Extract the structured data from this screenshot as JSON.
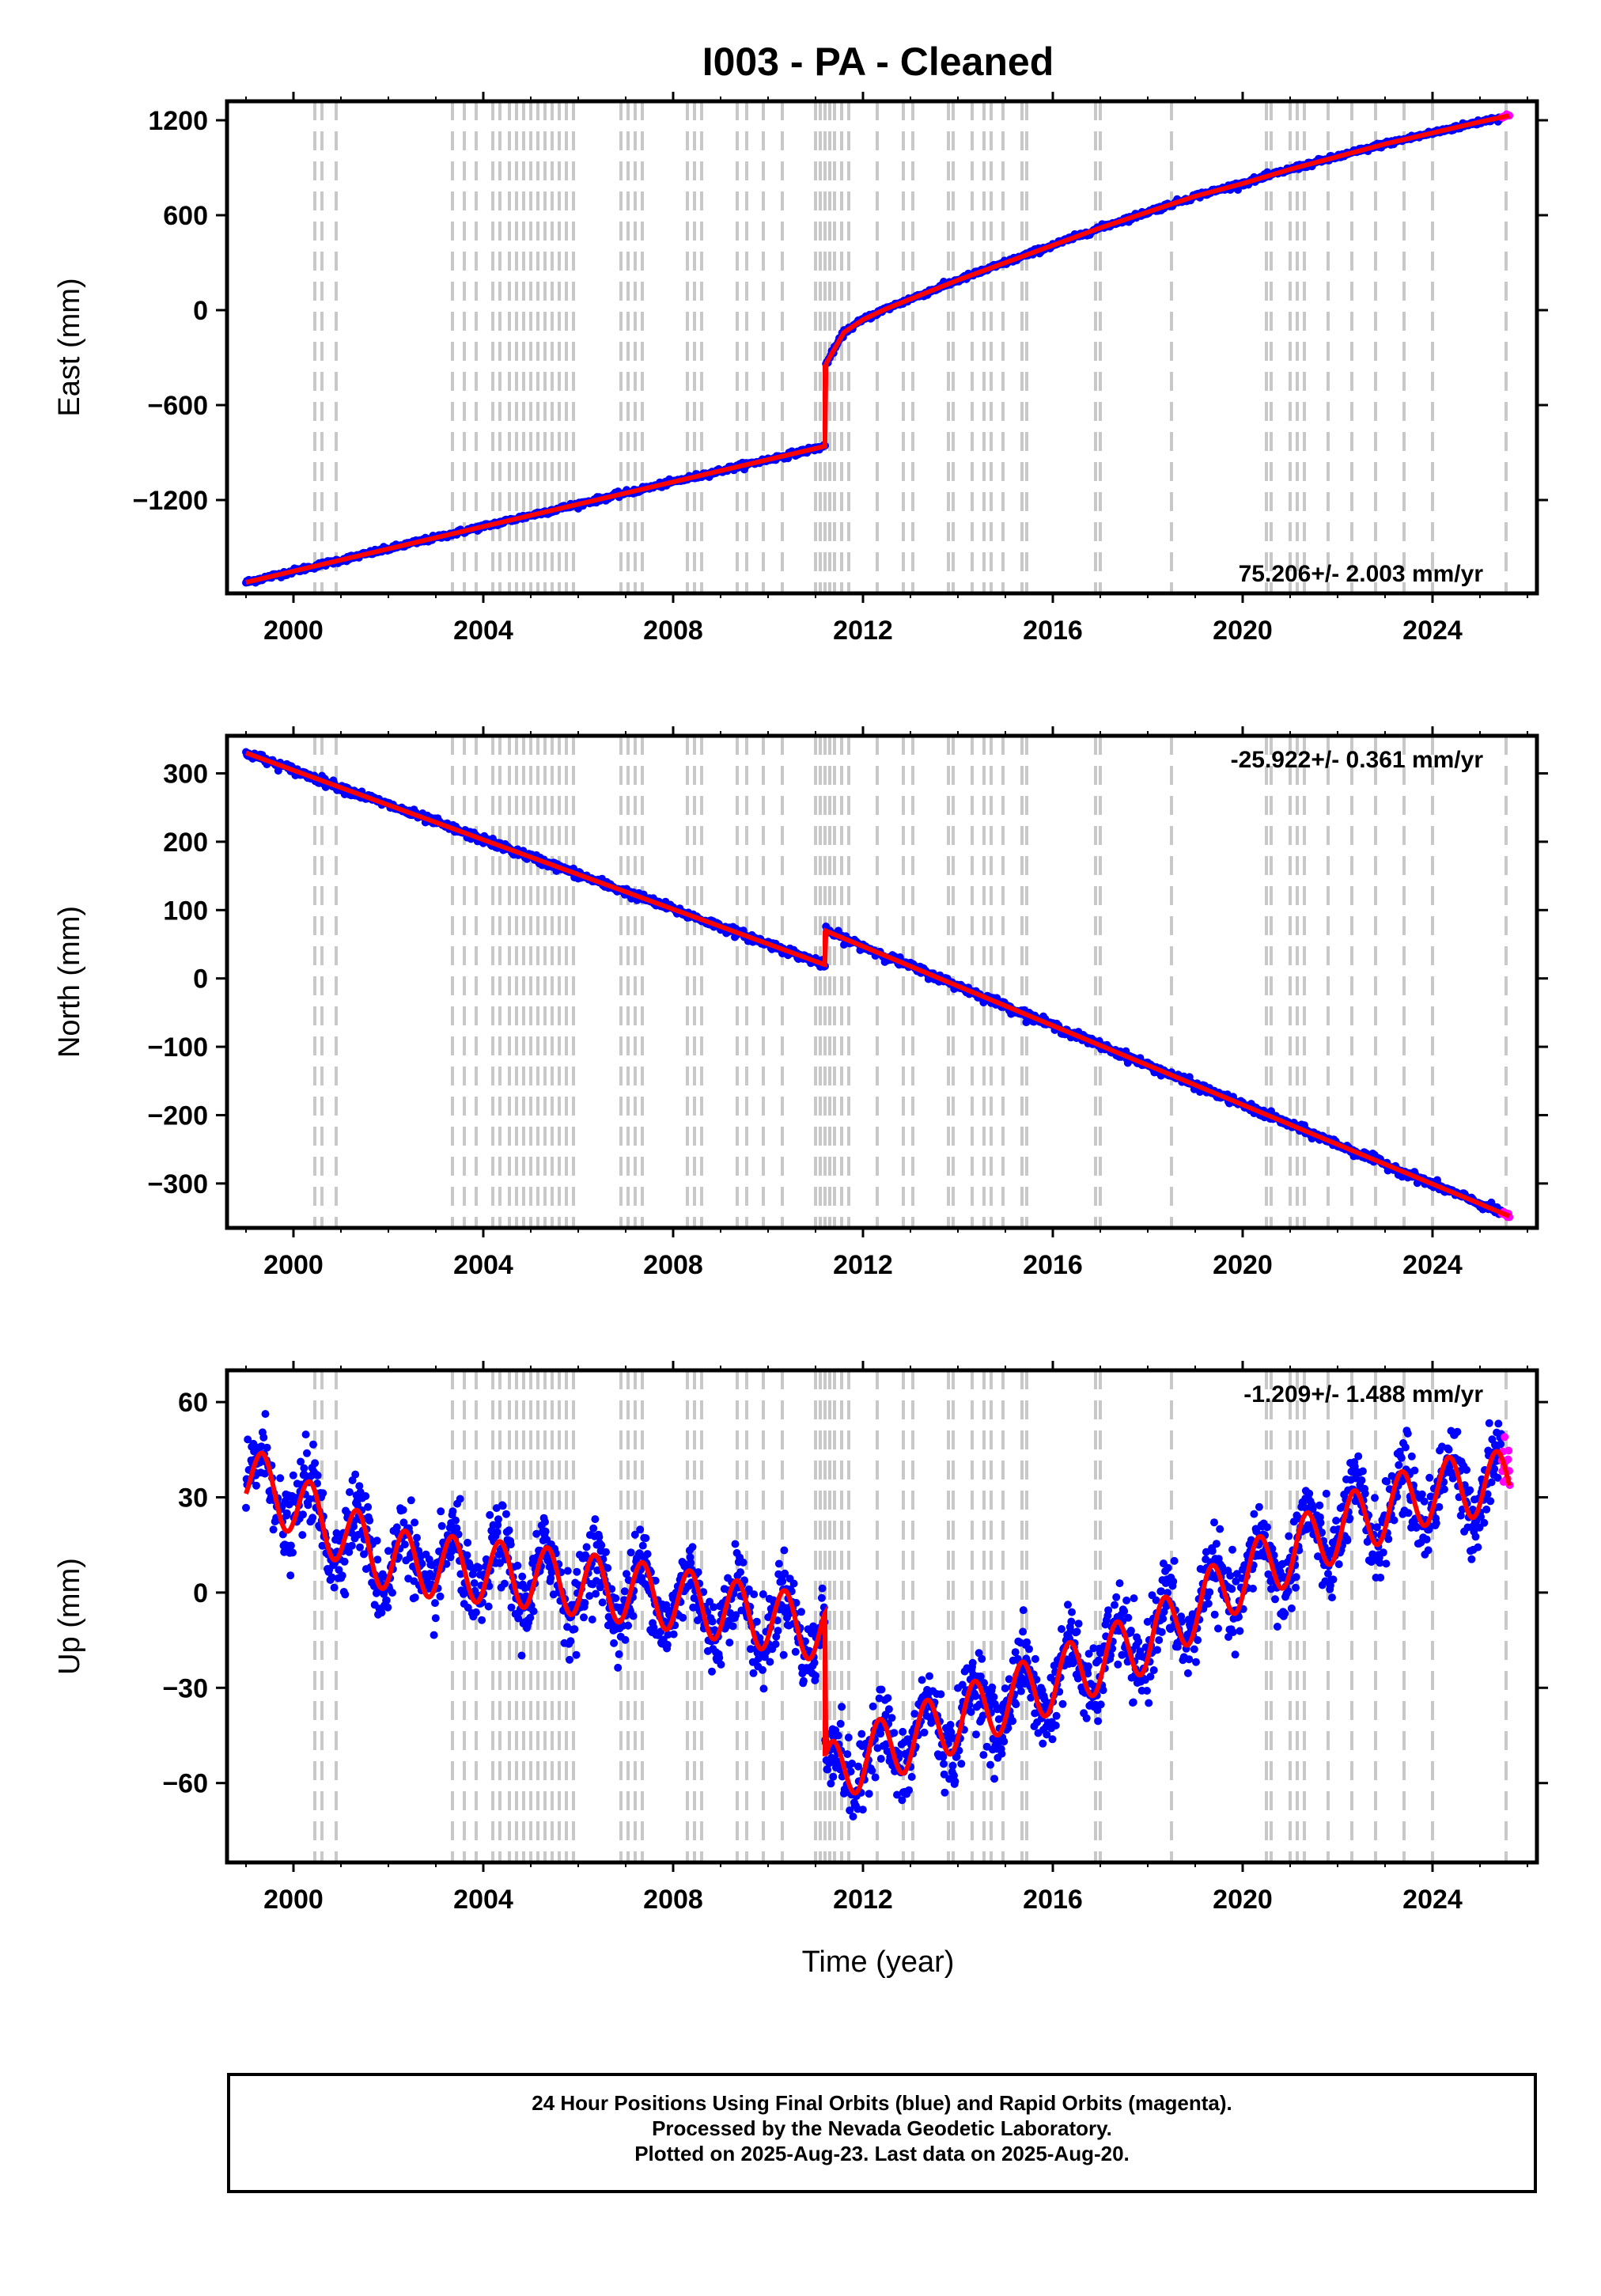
{
  "title": "I003  - PA - Cleaned",
  "xlabel": "Time (year)",
  "footer": {
    "line1": "24 Hour Positions Using Final Orbits (blue) and Rapid Orbits (magenta).",
    "line2": "Processed by the Nevada Geodetic Laboratory.",
    "line3": "Plotted on 2025-Aug-23. Last data on 2025-Aug-20."
  },
  "colors": {
    "final_orbits": "#0000ff",
    "rapid_orbits": "#ff00ff",
    "model": "#ff0000",
    "events": "#c8c8c8"
  },
  "chart_data": [
    {
      "type": "scatter",
      "panel": "east",
      "ylabel": "East (mm)",
      "rate_label": "75.206+/- 2.003 mm/yr",
      "xlim": [
        1998.6,
        2026.2
      ],
      "ylim": [
        -1790,
        1320
      ],
      "xticks": [
        2000,
        2004,
        2008,
        2012,
        2016,
        2020,
        2024
      ],
      "yticks": [
        -1200,
        -600,
        0,
        600,
        1200
      ],
      "grid": false,
      "model": {
        "pre_step": {
          "x": [
            1999.0,
            2011.2
          ],
          "y": [
            -1720,
            -860
          ]
        },
        "step_epoch": 2011.2,
        "step": {
          "x": [
            2011.2,
            2011.2
          ],
          "y": [
            -860,
            -350
          ]
        },
        "post_step": {
          "x": [
            2011.2,
            2011.6,
            2012.0,
            2012.5,
            2013.0,
            2014.0,
            2015.0,
            2016.0,
            2017.0,
            2018.0,
            2019.0,
            2020.0,
            2021.0,
            2022.0,
            2023.0,
            2024.0,
            2025.0,
            2025.63
          ],
          "y": [
            -350,
            -140,
            -60,
            10,
            70,
            190,
            300,
            410,
            520,
            620,
            720,
            800,
            890,
            970,
            1050,
            1120,
            1190,
            1230
          ]
        }
      }
    },
    {
      "type": "scatter",
      "panel": "north",
      "ylabel": "North (mm)",
      "rate_label": "-25.922+/- 0.361 mm/yr",
      "xlim": [
        1998.6,
        2026.2
      ],
      "ylim": [
        -365,
        355
      ],
      "xticks": [
        2000,
        2004,
        2008,
        2012,
        2016,
        2020,
        2024
      ],
      "yticks": [
        -300,
        -200,
        -100,
        0,
        100,
        200,
        300
      ],
      "grid": false,
      "model": {
        "pre_step": {
          "x": [
            1999.0,
            2011.2
          ],
          "y": [
            330,
            20
          ]
        },
        "step_epoch": 2011.2,
        "step": {
          "x": [
            2011.2,
            2011.2
          ],
          "y": [
            20,
            70
          ]
        },
        "post_step": {
          "x": [
            2011.2,
            2025.63
          ],
          "y": [
            70,
            -348
          ]
        }
      }
    },
    {
      "type": "scatter",
      "panel": "up",
      "ylabel": "Up (mm)",
      "rate_label": "-1.209+/- 1.488 mm/yr",
      "xlim": [
        1998.6,
        2026.2
      ],
      "ylim": [
        -85,
        70
      ],
      "xticks": [
        2000,
        2004,
        2008,
        2012,
        2016,
        2020,
        2024
      ],
      "yticks": [
        -60,
        -30,
        0,
        30,
        60
      ],
      "grid": false,
      "model": {
        "trend": {
          "x": [
            1999.0,
            2002.0,
            2005.0,
            2008.0,
            2011.2,
            2011.2,
            2012.0,
            2014.0,
            2016.0,
            2018.0,
            2020.0,
            2022.0,
            2024.0,
            2025.63
          ],
          "y": [
            37,
            10,
            5,
            -2,
            -12,
            -58,
            -52,
            -40,
            -28,
            -15,
            5,
            20,
            32,
            35
          ]
        },
        "seasonal_amplitude_mm": 10,
        "seasonal_period_yr": 1.0
      }
    }
  ],
  "event_epochs": [
    2000.45,
    2000.6,
    2000.9,
    2003.35,
    2003.6,
    2003.85,
    2004.2,
    2004.35,
    2004.55,
    2004.7,
    2004.85,
    2005.0,
    2005.15,
    2005.3,
    2005.45,
    2005.6,
    2005.75,
    2005.9,
    2006.9,
    2007.05,
    2007.2,
    2007.35,
    2008.3,
    2008.45,
    2008.6,
    2009.35,
    2009.55,
    2009.9,
    2010.3,
    2011.0,
    2011.1,
    2011.2,
    2011.3,
    2011.4,
    2011.55,
    2011.7,
    2012.3,
    2012.85,
    2013.05,
    2013.8,
    2013.9,
    2014.3,
    2014.55,
    2014.7,
    2014.95,
    2015.35,
    2015.45,
    2016.9,
    2017.0,
    2018.5,
    2020.5,
    2020.6,
    2021.0,
    2021.15,
    2021.3,
    2021.8,
    2022.3,
    2022.8,
    2023.4,
    2024.0,
    2025.55
  ]
}
